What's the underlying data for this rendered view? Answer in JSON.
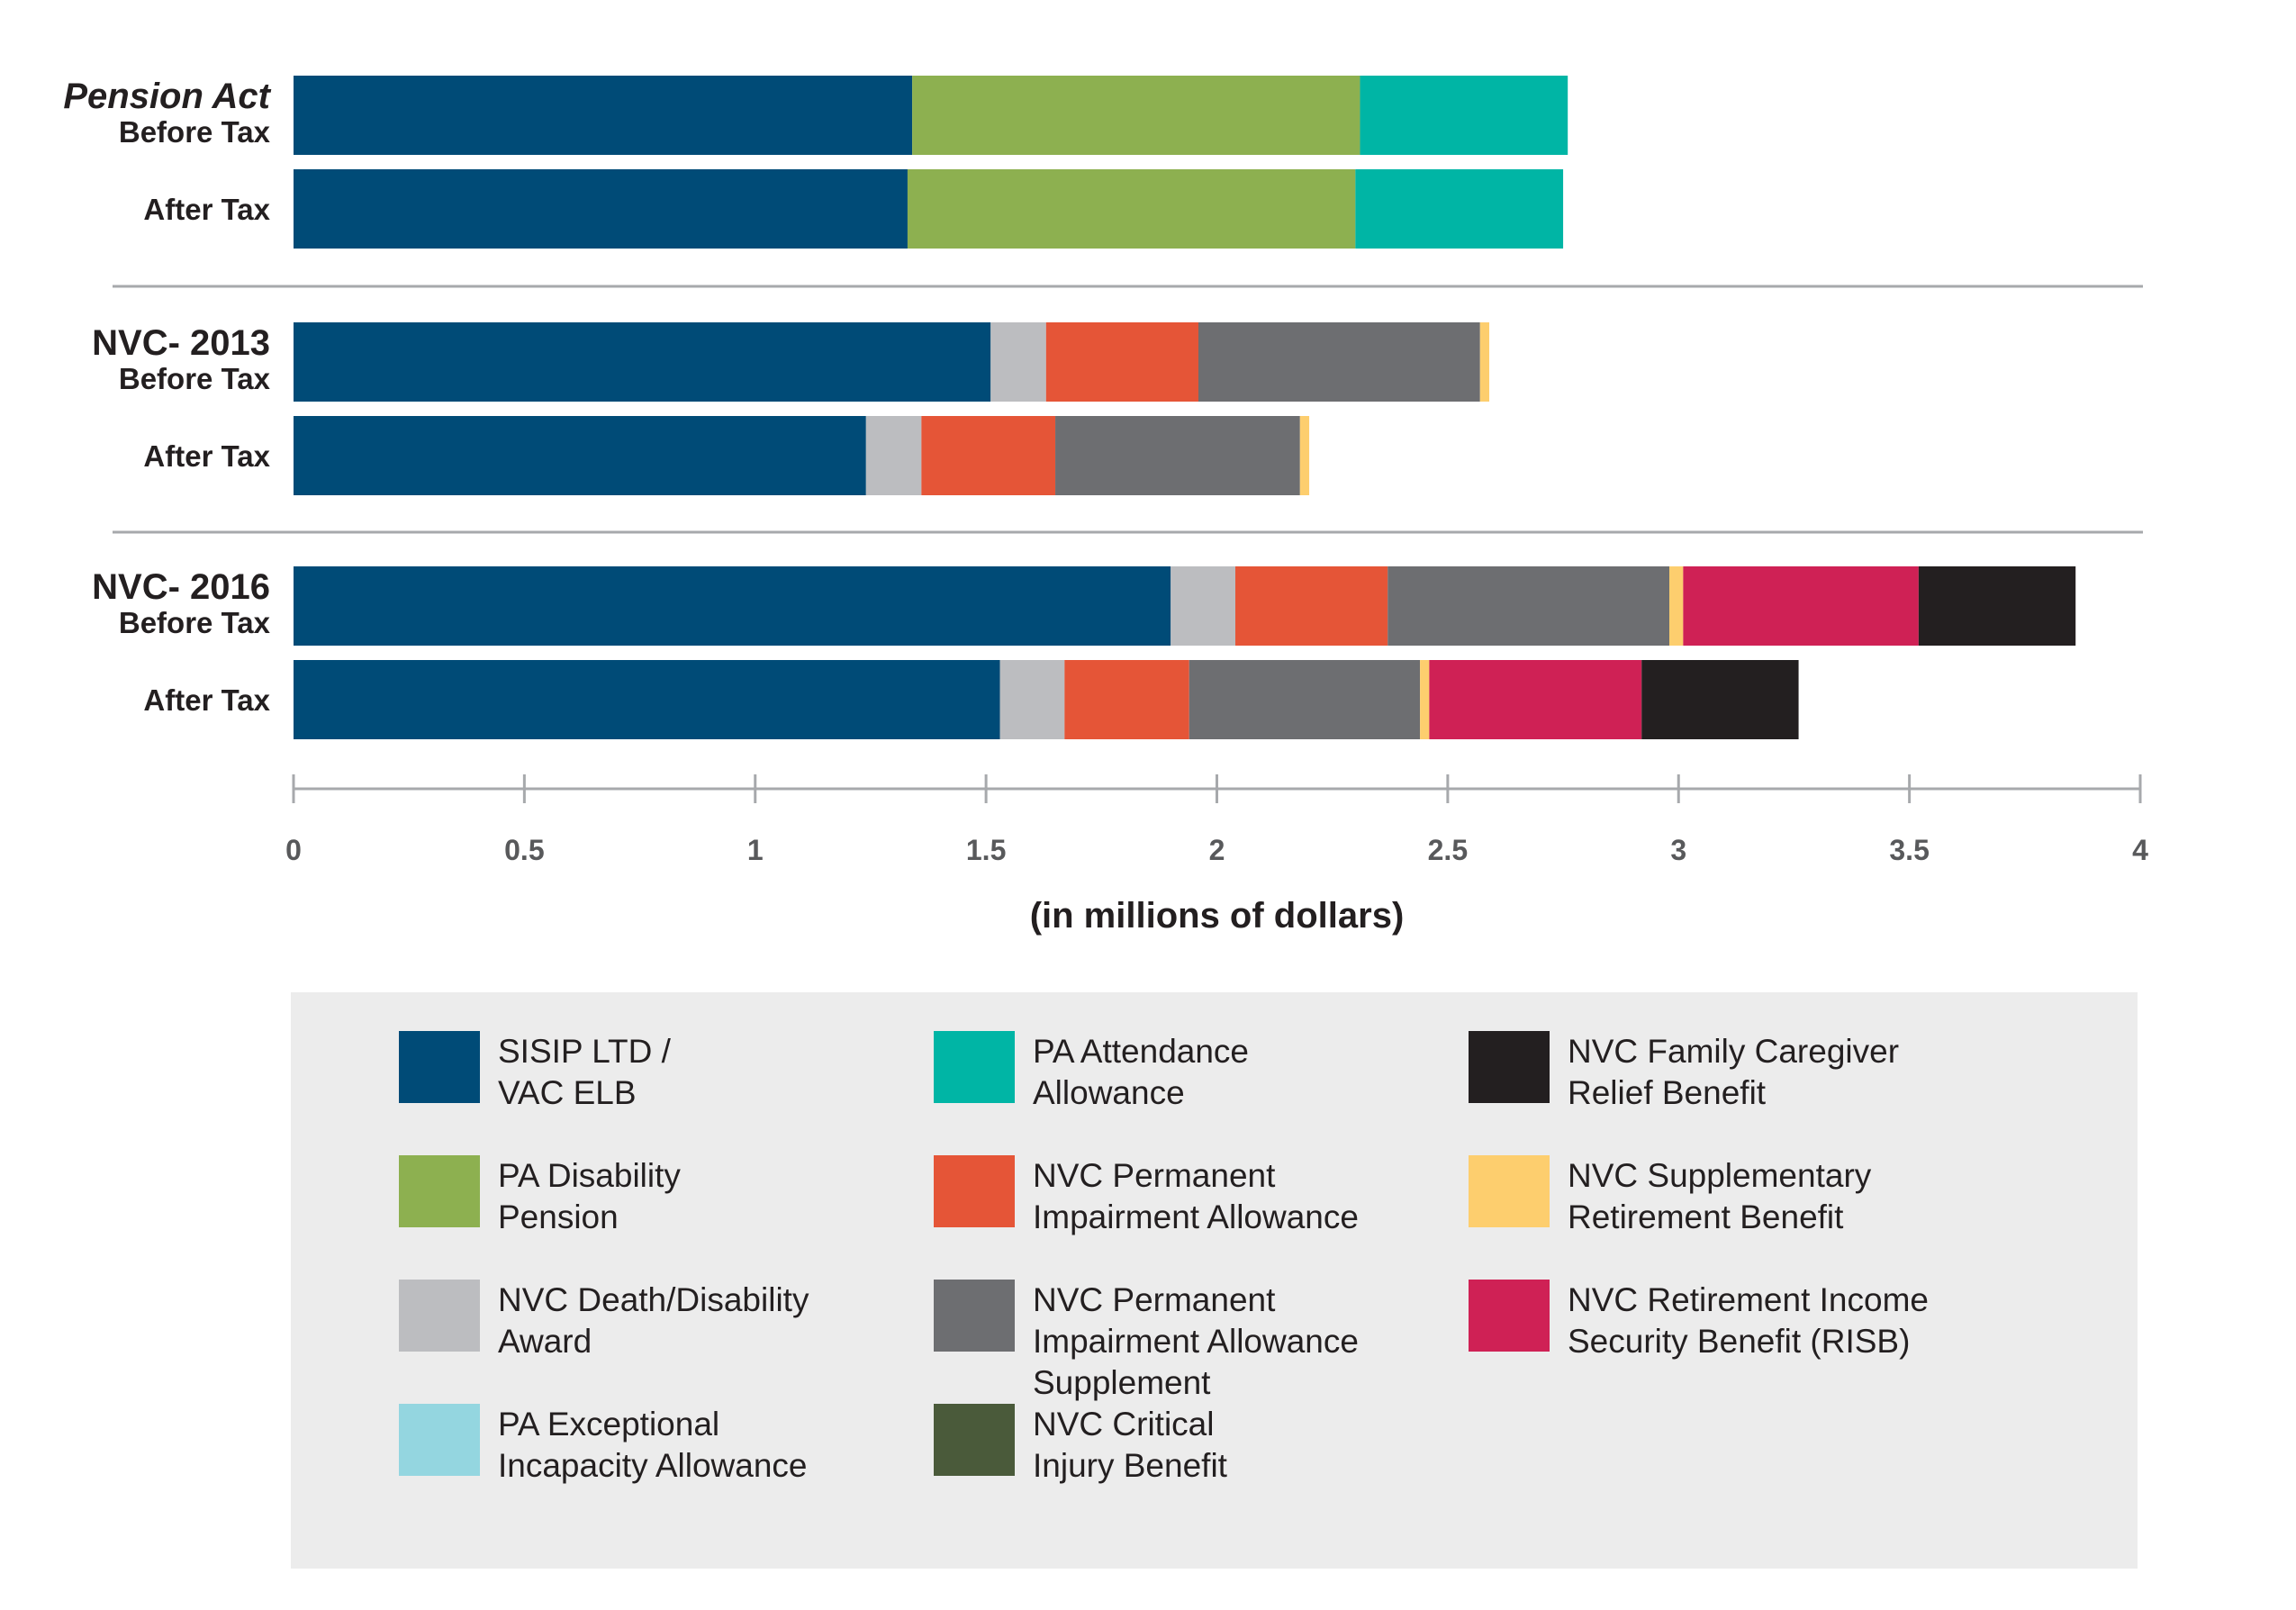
{
  "chart_data": {
    "type": "bar",
    "orientation": "horizontal",
    "stacked": true,
    "xlabel": "(in millions of dollars)",
    "xlim": [
      0,
      4
    ],
    "xticks": [
      "0",
      "0.5",
      "1",
      "1.5",
      "2",
      "2.5",
      "3",
      "3.5",
      "4"
    ],
    "groups": [
      {
        "name": "Pension Act",
        "bars": [
          {
            "label": "Before Tax",
            "segments": [
              {
                "series": "sisip",
                "value": 1.34
              },
              {
                "series": "pa_disability",
                "value": 0.97
              },
              {
                "series": "pa_attendance",
                "value": 0.45
              }
            ]
          },
          {
            "label": "After Tax",
            "segments": [
              {
                "series": "sisip",
                "value": 1.33
              },
              {
                "series": "pa_disability",
                "value": 0.97
              },
              {
                "series": "pa_attendance",
                "value": 0.45
              }
            ]
          }
        ]
      },
      {
        "name": "NVC- 2013",
        "bars": [
          {
            "label": "Before Tax",
            "segments": [
              {
                "series": "sisip",
                "value": 1.51
              },
              {
                "series": "death_disability",
                "value": 0.12
              },
              {
                "series": "pia",
                "value": 0.33
              },
              {
                "series": "pia_supplement",
                "value": 0.61
              },
              {
                "series": "srb",
                "value": 0.02
              }
            ]
          },
          {
            "label": "After Tax",
            "segments": [
              {
                "series": "sisip",
                "value": 1.24
              },
              {
                "series": "death_disability",
                "value": 0.12
              },
              {
                "series": "pia",
                "value": 0.29
              },
              {
                "series": "pia_supplement",
                "value": 0.53
              },
              {
                "series": "srb",
                "value": 0.02
              }
            ]
          }
        ]
      },
      {
        "name": "NVC- 2016",
        "bars": [
          {
            "label": "Before Tax",
            "segments": [
              {
                "series": "sisip",
                "value": 1.9
              },
              {
                "series": "death_disability",
                "value": 0.14
              },
              {
                "series": "pia",
                "value": 0.33
              },
              {
                "series": "pia_supplement",
                "value": 0.61
              },
              {
                "series": "srb",
                "value": 0.03
              },
              {
                "series": "risb",
                "value": 0.51
              },
              {
                "series": "caregiver",
                "value": 0.34
              }
            ]
          },
          {
            "label": "After Tax",
            "segments": [
              {
                "series": "sisip",
                "value": 1.53
              },
              {
                "series": "death_disability",
                "value": 0.14
              },
              {
                "series": "pia",
                "value": 0.27
              },
              {
                "series": "pia_supplement",
                "value": 0.5
              },
              {
                "series": "srb",
                "value": 0.02
              },
              {
                "series": "risb",
                "value": 0.46
              },
              {
                "series": "caregiver",
                "value": 0.34
              }
            ]
          }
        ]
      }
    ],
    "series": {
      "sisip": {
        "name": "SISIP LTD /\nVAC ELB",
        "color": "#004b77"
      },
      "pa_disability": {
        "name": "PA Disability\nPension",
        "color": "#8db050"
      },
      "death_disability": {
        "name": "NVC Death/Disability\nAward",
        "color": "#bcbdc0"
      },
      "pa_exceptional": {
        "name": "PA Exceptional\nIncapacity Allowance",
        "color": "#94d6e0"
      },
      "pa_attendance": {
        "name": "PA Attendance\nAllowance",
        "color": "#00b5a5"
      },
      "pia": {
        "name": "NVC Permanent\nImpairment Allowance",
        "color": "#e55537"
      },
      "pia_supplement": {
        "name": "NVC Permanent\nImpairment Allowance\nSupplement",
        "color": "#6d6e71"
      },
      "critical_injury": {
        "name": "NVC Critical\nInjury Benefit",
        "color": "#4a5a3a"
      },
      "caregiver": {
        "name": "NVC Family Caregiver\nRelief Benefit",
        "color": "#231f20"
      },
      "srb": {
        "name": "NVC Supplementary\nRetirement Benefit",
        "color": "#fdce6e"
      },
      "risb": {
        "name": "NVC Retirement Income\nSecurity Benefit (RISB)",
        "color": "#cf2155"
      }
    },
    "legend": {
      "placement": "bottom",
      "columns": [
        [
          "sisip",
          "pa_disability",
          "death_disability",
          "pa_exceptional"
        ],
        [
          "pa_attendance",
          "pia",
          "pia_supplement",
          "critical_injury"
        ],
        [
          "caregiver",
          "srb",
          "risb"
        ]
      ]
    }
  }
}
